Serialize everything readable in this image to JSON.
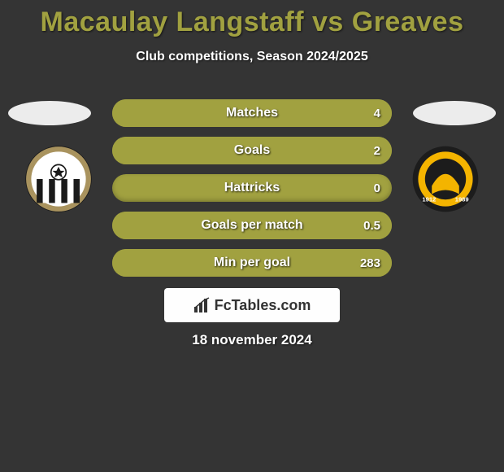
{
  "title": {
    "text": "Macaulay Langstaff vs Greaves",
    "color": "#a1a140"
  },
  "subtitle": {
    "text": "Club competitions, Season 2024/2025",
    "color": "#ffffff"
  },
  "date": {
    "text": "18 november 2024",
    "color": "#ffffff"
  },
  "colors": {
    "background": "#343434",
    "bar_base": "#a1a140",
    "bar_fill_right": "#343434",
    "oval": "#ececec",
    "brand_box": "#fefefe"
  },
  "crests": {
    "left": {
      "name": "Notts County",
      "outer_fill": "#a9935e",
      "inner_stripes": [
        "#ffffff",
        "#1a1a1a"
      ],
      "badge_bg": "#ffffff"
    },
    "right": {
      "name": "Newport County",
      "outer_fill": "#1c1c1c",
      "ring_fill": "#f4b400",
      "center_fill": "#f4b400",
      "years": [
        "1912",
        "1989"
      ]
    }
  },
  "rows": [
    {
      "label": "Matches",
      "left": "",
      "right": "4",
      "right_fill_pct": 100
    },
    {
      "label": "Goals",
      "left": "",
      "right": "2",
      "right_fill_pct": 100
    },
    {
      "label": "Hattricks",
      "left": "",
      "right": "0",
      "right_fill_pct": 0
    },
    {
      "label": "Goals per match",
      "left": "",
      "right": "0.5",
      "right_fill_pct": 100
    },
    {
      "label": "Min per goal",
      "left": "",
      "right": "283",
      "right_fill_pct": 100
    }
  ],
  "brand": {
    "text": "FcTables.com",
    "icon": "bar-chart-icon"
  }
}
